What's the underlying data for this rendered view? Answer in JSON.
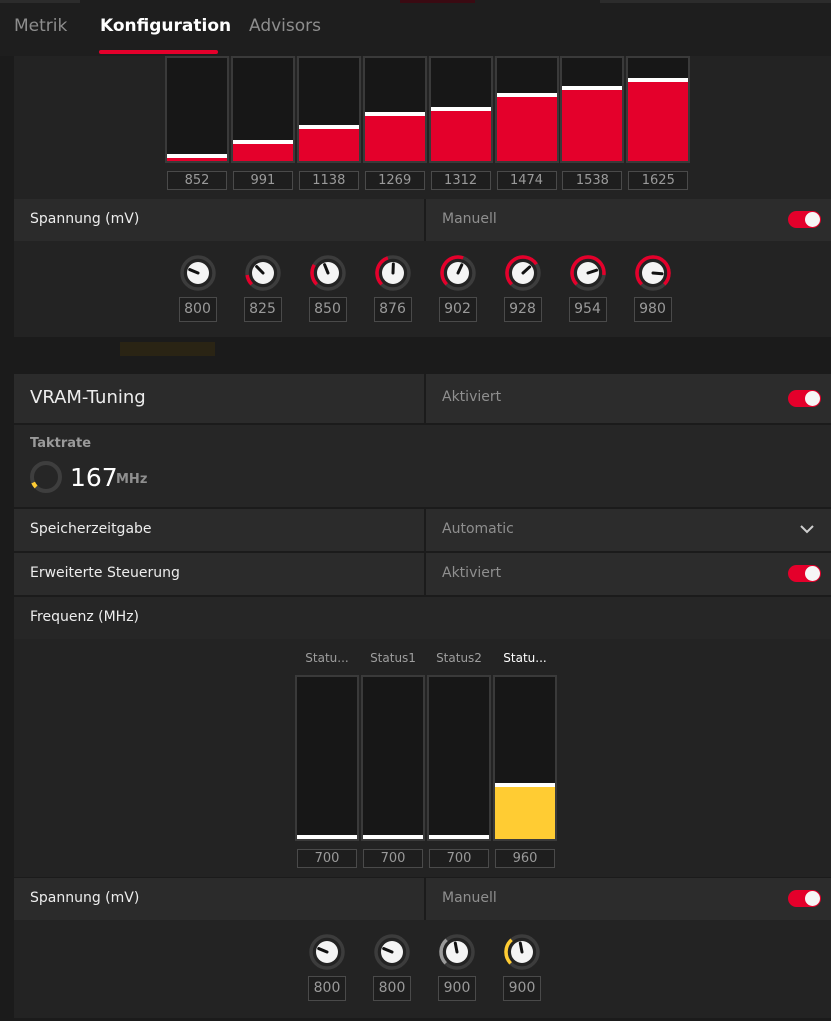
{
  "tabs": [
    {
      "label": "Metrik",
      "active": false
    },
    {
      "label": "Konfiguration",
      "active": true
    },
    {
      "label": "Advisors",
      "active": false
    }
  ],
  "gpu": {
    "freq_values": [
      "852",
      "991",
      "1138",
      "1269",
      "1312",
      "1474",
      "1538",
      "1625"
    ],
    "freq_levels": [
      0.03,
      0.17,
      0.32,
      0.45,
      0.5,
      0.65,
      0.72,
      0.8
    ],
    "voltage": {
      "label": "Spannung (mV)",
      "mode": "Manuell",
      "toggle_on": true,
      "values": [
        "800",
        "825",
        "850",
        "876",
        "902",
        "928",
        "954",
        "980"
      ],
      "levels": [
        0.0,
        0.14,
        0.28,
        0.43,
        0.57,
        0.71,
        0.86,
        1.0
      ]
    }
  },
  "vram": {
    "title": "VRAM-Tuning",
    "status": "Aktiviert",
    "toggle_on": true,
    "clock": {
      "label": "Taktrate",
      "value": "167",
      "unit": "MHz",
      "level": 0.08
    },
    "timing": {
      "label": "Speicherzeitgabe",
      "value": "Automatic"
    },
    "advanced": {
      "label": "Erweiterte Steuerung",
      "status": "Aktiviert",
      "toggle_on": true
    },
    "frequency": {
      "label": "Frequenz (MHz)",
      "states": [
        "Statu...",
        "Status1",
        "Status2",
        "Statu..."
      ],
      "values": [
        "700",
        "700",
        "700",
        "960"
      ],
      "levels": [
        0.0,
        0.0,
        0.0,
        0.33
      ]
    },
    "voltage": {
      "label": "Spannung (mV)",
      "mode": "Manuell",
      "toggle_on": true,
      "values": [
        "800",
        "800",
        "900",
        "900"
      ],
      "levels": [
        0.0,
        0.0,
        0.35,
        0.35
      ]
    }
  },
  "colors": {
    "accent_red": "#e4002b",
    "accent_yellow": "#ffcc33",
    "panel": "#232323",
    "row": "#2c2c2c"
  }
}
